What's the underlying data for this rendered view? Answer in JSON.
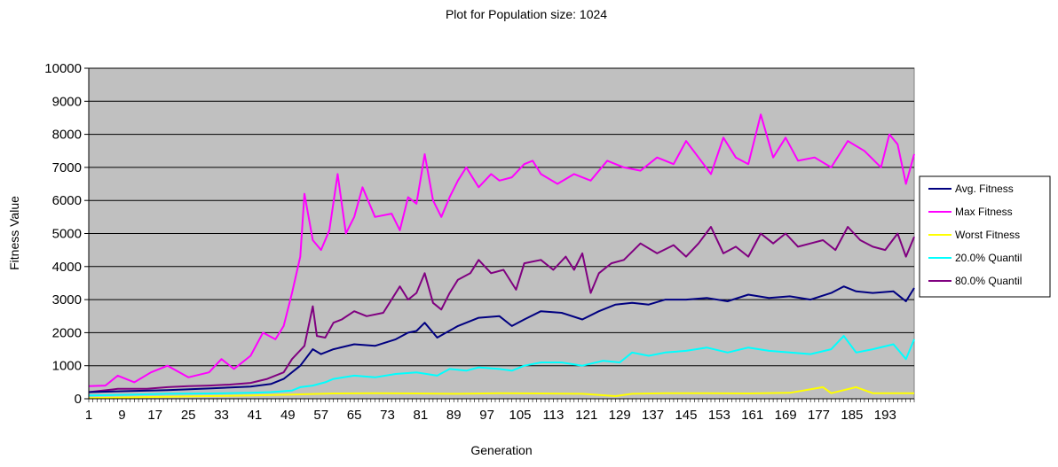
{
  "chart_data": {
    "type": "line",
    "title": "Plot for Population size: 1024",
    "xlabel": "Generation",
    "ylabel": "Fitness Value",
    "ylim": [
      0,
      10000
    ],
    "yticks": [
      0,
      1000,
      2000,
      3000,
      4000,
      5000,
      6000,
      7000,
      8000,
      9000,
      10000
    ],
    "xlim": [
      1,
      200
    ],
    "xtick_labels": [
      "1",
      "9",
      "17",
      "25",
      "33",
      "41",
      "49",
      "57",
      "65",
      "73",
      "81",
      "89",
      "97",
      "105",
      "113",
      "121",
      "129",
      "137",
      "145",
      "153",
      "161",
      "169",
      "177",
      "185",
      "193"
    ],
    "grid": "horizontal",
    "legend_position": "right",
    "plot_background": "#c0c0c0",
    "series": [
      {
        "name": "Avg. Fitness",
        "color": "#000080",
        "points": [
          [
            1,
            200
          ],
          [
            10,
            230
          ],
          [
            20,
            260
          ],
          [
            30,
            310
          ],
          [
            40,
            370
          ],
          [
            45,
            450
          ],
          [
            48,
            600
          ],
          [
            52,
            1000
          ],
          [
            55,
            1500
          ],
          [
            57,
            1350
          ],
          [
            60,
            1500
          ],
          [
            65,
            1650
          ],
          [
            70,
            1600
          ],
          [
            75,
            1800
          ],
          [
            78,
            2000
          ],
          [
            80,
            2050
          ],
          [
            82,
            2300
          ],
          [
            85,
            1850
          ],
          [
            90,
            2200
          ],
          [
            95,
            2450
          ],
          [
            100,
            2500
          ],
          [
            103,
            2200
          ],
          [
            106,
            2400
          ],
          [
            110,
            2650
          ],
          [
            115,
            2600
          ],
          [
            120,
            2400
          ],
          [
            124,
            2650
          ],
          [
            128,
            2850
          ],
          [
            132,
            2900
          ],
          [
            136,
            2850
          ],
          [
            140,
            3000
          ],
          [
            145,
            3000
          ],
          [
            150,
            3050
          ],
          [
            155,
            2950
          ],
          [
            160,
            3150
          ],
          [
            165,
            3050
          ],
          [
            170,
            3100
          ],
          [
            175,
            3000
          ],
          [
            180,
            3200
          ],
          [
            183,
            3400
          ],
          [
            186,
            3250
          ],
          [
            190,
            3200
          ],
          [
            195,
            3250
          ],
          [
            198,
            2950
          ],
          [
            200,
            3350
          ]
        ]
      },
      {
        "name": "Max Fitness",
        "color": "#ff00ff",
        "points": [
          [
            1,
            380
          ],
          [
            5,
            400
          ],
          [
            8,
            700
          ],
          [
            12,
            500
          ],
          [
            16,
            800
          ],
          [
            20,
            1000
          ],
          [
            25,
            650
          ],
          [
            30,
            800
          ],
          [
            33,
            1200
          ],
          [
            36,
            900
          ],
          [
            40,
            1300
          ],
          [
            43,
            2000
          ],
          [
            46,
            1800
          ],
          [
            48,
            2200
          ],
          [
            50,
            3200
          ],
          [
            52,
            4300
          ],
          [
            53,
            6200
          ],
          [
            55,
            4800
          ],
          [
            57,
            4500
          ],
          [
            59,
            5100
          ],
          [
            61,
            6800
          ],
          [
            63,
            5000
          ],
          [
            65,
            5500
          ],
          [
            67,
            6400
          ],
          [
            70,
            5500
          ],
          [
            74,
            5600
          ],
          [
            76,
            5100
          ],
          [
            78,
            6100
          ],
          [
            80,
            5900
          ],
          [
            82,
            7400
          ],
          [
            84,
            6000
          ],
          [
            86,
            5500
          ],
          [
            88,
            6100
          ],
          [
            90,
            6600
          ],
          [
            92,
            7000
          ],
          [
            95,
            6400
          ],
          [
            98,
            6800
          ],
          [
            100,
            6600
          ],
          [
            103,
            6700
          ],
          [
            106,
            7100
          ],
          [
            108,
            7200
          ],
          [
            110,
            6800
          ],
          [
            114,
            6500
          ],
          [
            118,
            6800
          ],
          [
            122,
            6600
          ],
          [
            126,
            7200
          ],
          [
            130,
            7000
          ],
          [
            134,
            6900
          ],
          [
            138,
            7300
          ],
          [
            142,
            7100
          ],
          [
            145,
            7800
          ],
          [
            148,
            7300
          ],
          [
            151,
            6800
          ],
          [
            154,
            7900
          ],
          [
            157,
            7300
          ],
          [
            160,
            7100
          ],
          [
            163,
            8600
          ],
          [
            166,
            7300
          ],
          [
            169,
            7900
          ],
          [
            172,
            7200
          ],
          [
            176,
            7300
          ],
          [
            180,
            7000
          ],
          [
            184,
            7800
          ],
          [
            188,
            7500
          ],
          [
            192,
            7000
          ],
          [
            194,
            8000
          ],
          [
            196,
            7700
          ],
          [
            198,
            6500
          ],
          [
            200,
            7400
          ]
        ]
      },
      {
        "name": "Worst Fitness",
        "color": "#ffff00",
        "points": [
          [
            1,
            20
          ],
          [
            10,
            40
          ],
          [
            20,
            60
          ],
          [
            30,
            80
          ],
          [
            40,
            100
          ],
          [
            50,
            130
          ],
          [
            60,
            160
          ],
          [
            70,
            170
          ],
          [
            80,
            160
          ],
          [
            90,
            150
          ],
          [
            100,
            170
          ],
          [
            110,
            160
          ],
          [
            120,
            150
          ],
          [
            128,
            80
          ],
          [
            132,
            150
          ],
          [
            140,
            170
          ],
          [
            150,
            170
          ],
          [
            160,
            160
          ],
          [
            170,
            180
          ],
          [
            178,
            350
          ],
          [
            180,
            170
          ],
          [
            186,
            350
          ],
          [
            190,
            170
          ],
          [
            200,
            170
          ]
        ]
      },
      {
        "name": "20.0% Quantil",
        "color": "#00ffff",
        "points": [
          [
            1,
            100
          ],
          [
            10,
            120
          ],
          [
            20,
            150
          ],
          [
            30,
            160
          ],
          [
            40,
            180
          ],
          [
            45,
            200
          ],
          [
            50,
            250
          ],
          [
            52,
            350
          ],
          [
            55,
            400
          ],
          [
            58,
            500
          ],
          [
            60,
            600
          ],
          [
            65,
            700
          ],
          [
            70,
            650
          ],
          [
            75,
            750
          ],
          [
            80,
            800
          ],
          [
            85,
            700
          ],
          [
            88,
            900
          ],
          [
            92,
            850
          ],
          [
            95,
            950
          ],
          [
            100,
            900
          ],
          [
            103,
            850
          ],
          [
            106,
            1000
          ],
          [
            110,
            1100
          ],
          [
            115,
            1100
          ],
          [
            120,
            1000
          ],
          [
            125,
            1150
          ],
          [
            129,
            1100
          ],
          [
            132,
            1400
          ],
          [
            136,
            1300
          ],
          [
            140,
            1400
          ],
          [
            145,
            1450
          ],
          [
            150,
            1550
          ],
          [
            155,
            1400
          ],
          [
            160,
            1550
          ],
          [
            165,
            1450
          ],
          [
            170,
            1400
          ],
          [
            175,
            1350
          ],
          [
            180,
            1500
          ],
          [
            183,
            1900
          ],
          [
            186,
            1400
          ],
          [
            190,
            1500
          ],
          [
            195,
            1650
          ],
          [
            198,
            1200
          ],
          [
            200,
            1800
          ]
        ]
      },
      {
        "name": "80.0% Quantil",
        "color": "#800080",
        "points": [
          [
            1,
            200
          ],
          [
            8,
            300
          ],
          [
            15,
            300
          ],
          [
            20,
            350
          ],
          [
            25,
            380
          ],
          [
            30,
            400
          ],
          [
            35,
            430
          ],
          [
            40,
            480
          ],
          [
            44,
            600
          ],
          [
            48,
            800
          ],
          [
            50,
            1200
          ],
          [
            53,
            1600
          ],
          [
            55,
            2800
          ],
          [
            56,
            1900
          ],
          [
            58,
            1850
          ],
          [
            60,
            2300
          ],
          [
            62,
            2400
          ],
          [
            65,
            2650
          ],
          [
            68,
            2500
          ],
          [
            72,
            2600
          ],
          [
            76,
            3400
          ],
          [
            78,
            3000
          ],
          [
            80,
            3200
          ],
          [
            82,
            3800
          ],
          [
            84,
            2900
          ],
          [
            86,
            2700
          ],
          [
            88,
            3200
          ],
          [
            90,
            3600
          ],
          [
            93,
            3800
          ],
          [
            95,
            4200
          ],
          [
            98,
            3800
          ],
          [
            101,
            3900
          ],
          [
            104,
            3300
          ],
          [
            106,
            4100
          ],
          [
            110,
            4200
          ],
          [
            113,
            3900
          ],
          [
            116,
            4300
          ],
          [
            118,
            3900
          ],
          [
            120,
            4400
          ],
          [
            122,
            3200
          ],
          [
            124,
            3800
          ],
          [
            127,
            4100
          ],
          [
            130,
            4200
          ],
          [
            134,
            4700
          ],
          [
            138,
            4400
          ],
          [
            142,
            4650
          ],
          [
            145,
            4300
          ],
          [
            148,
            4700
          ],
          [
            151,
            5200
          ],
          [
            154,
            4400
          ],
          [
            157,
            4600
          ],
          [
            160,
            4300
          ],
          [
            163,
            5000
          ],
          [
            166,
            4700
          ],
          [
            169,
            5000
          ],
          [
            172,
            4600
          ],
          [
            175,
            4700
          ],
          [
            178,
            4800
          ],
          [
            181,
            4500
          ],
          [
            184,
            5200
          ],
          [
            187,
            4800
          ],
          [
            190,
            4600
          ],
          [
            193,
            4500
          ],
          [
            196,
            5000
          ],
          [
            198,
            4300
          ],
          [
            200,
            4900
          ]
        ]
      }
    ]
  }
}
